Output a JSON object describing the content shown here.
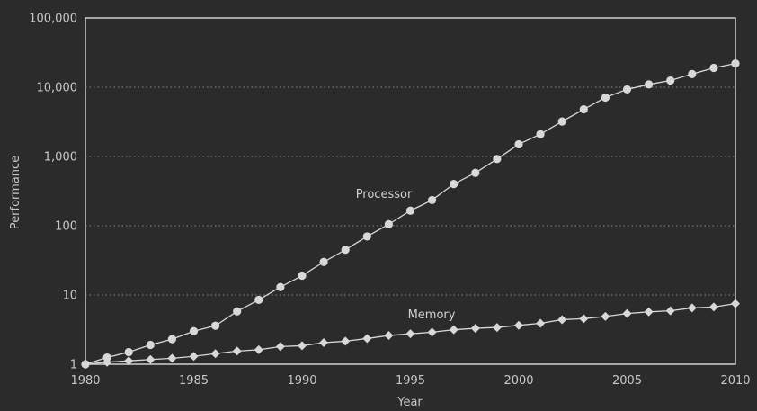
{
  "chart_data": {
    "type": "line",
    "x_label": "Year",
    "y_label": "Performance",
    "y_scale": "log",
    "y_range": [
      1,
      100000
    ],
    "x_range": [
      1980,
      2010
    ],
    "grid": "horizontal dotted",
    "x_tick_values": [
      1980,
      1985,
      1990,
      1995,
      2000,
      2005,
      2010
    ],
    "x_tick_labels": [
      "1980",
      "1985",
      "1990",
      "1995",
      "2000",
      "2005",
      "2010"
    ],
    "y_tick_values": [
      1,
      10,
      100,
      1000,
      10000,
      100000
    ],
    "y_tick_labels": [
      "1",
      "10",
      "100",
      "1,000",
      "10,000",
      "100,000"
    ],
    "series": [
      {
        "name": "Processor",
        "marker": "circle",
        "color": "#d8d8d8",
        "x": [
          1980,
          1981,
          1982,
          1983,
          1984,
          1985,
          1986,
          1987,
          1988,
          1989,
          1990,
          1991,
          1992,
          1993,
          1994,
          1995,
          1996,
          1997,
          1998,
          1999,
          2000,
          2001,
          2002,
          2003,
          2004,
          2005,
          2006,
          2007,
          2008,
          2009,
          2010
        ],
        "values": [
          1,
          1.25,
          1.5,
          1.9,
          2.3,
          3,
          3.6,
          5.8,
          8.5,
          13,
          19,
          30,
          45,
          70,
          105,
          165,
          235,
          400,
          580,
          920,
          1500,
          2100,
          3200,
          4800,
          7100,
          9300,
          11000,
          12500,
          15500,
          19000,
          22000
        ]
      },
      {
        "name": "Memory",
        "marker": "diamond",
        "color": "#d8d8d8",
        "x": [
          1980,
          1981,
          1982,
          1983,
          1984,
          1985,
          1986,
          1987,
          1988,
          1989,
          1990,
          1991,
          1992,
          1993,
          1994,
          1995,
          1996,
          1997,
          1998,
          1999,
          2000,
          2001,
          2002,
          2003,
          2004,
          2005,
          2006,
          2007,
          2008,
          2009,
          2010
        ],
        "values": [
          1,
          1.07,
          1.12,
          1.17,
          1.22,
          1.3,
          1.42,
          1.55,
          1.62,
          1.8,
          1.85,
          2.05,
          2.15,
          2.35,
          2.6,
          2.75,
          2.9,
          3.15,
          3.3,
          3.4,
          3.65,
          3.9,
          4.4,
          4.55,
          4.9,
          5.4,
          5.7,
          5.9,
          6.5,
          6.7,
          7.5
        ]
      }
    ]
  }
}
